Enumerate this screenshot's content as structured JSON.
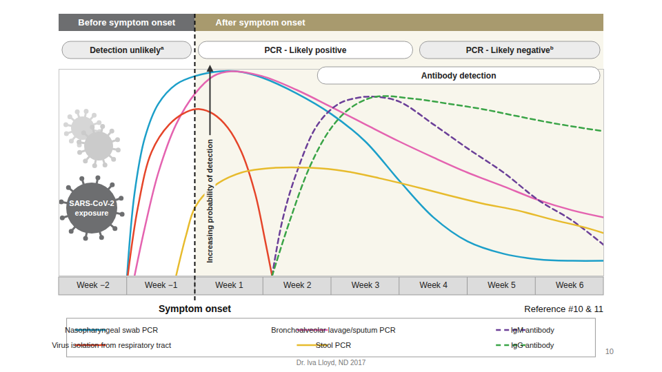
{
  "chart_data": {
    "type": "line",
    "header": {
      "before": "Before symptom onset",
      "after": "After symptom onset"
    },
    "onset": {
      "x": 0,
      "label": "Symptom onset"
    },
    "phases": [
      {
        "label": "Detection unlikely",
        "note": "a",
        "start": -2,
        "end": 0,
        "color": "#ececec"
      },
      {
        "label": "PCR - Likely positive",
        "start": 0,
        "end": 3.25,
        "color": "#ffffff"
      },
      {
        "label": "PCR - Likely negative",
        "note": "b",
        "start": 3.25,
        "end": 6,
        "color": "#ececec"
      },
      {
        "label": "Antibody detection",
        "start": 1.75,
        "end": 6,
        "color": "#ffffff"
      }
    ],
    "ylabel": "Increasing probability of detection",
    "exposure_label": "SARS-CoV-2 exposure",
    "reference": "Reference #10 & 11",
    "footer": "Dr. Iva Lloyd, ND 2017",
    "page": 10,
    "xlim": [
      -2,
      6
    ],
    "xticks": [
      {
        "value": -1.5,
        "label": "Week −2"
      },
      {
        "value": -0.5,
        "label": "Week −1"
      },
      {
        "value": 0.5,
        "label": "Week 1"
      },
      {
        "value": 1.5,
        "label": "Week 2"
      },
      {
        "value": 2.5,
        "label": "Week 3"
      },
      {
        "value": 3.5,
        "label": "Week 4"
      },
      {
        "value": 4.5,
        "label": "Week 5"
      },
      {
        "value": 5.5,
        "label": "Week 6"
      }
    ],
    "ylim": [
      0,
      100
    ],
    "tick_labels": "x",
    "legend": "bottom",
    "series": [
      {
        "name": "Nasopharyngeal swab PCR",
        "color": "#1c9fc9",
        "line_style": "solid",
        "x": [
          -1.0,
          -0.89,
          -0.74,
          -0.54,
          -0.28,
          0,
          0.37,
          0.68,
          0.98,
          1.49,
          2.0,
          2.5,
          3.0,
          3.5,
          4.0,
          4.53,
          5.04,
          5.54,
          6.0
        ],
        "values": [
          0,
          40,
          66.7,
          83.3,
          92.7,
          96.7,
          99,
          98.7,
          96,
          88.3,
          78.3,
          65,
          46,
          28.3,
          16.7,
          10.7,
          8,
          7.3,
          7.3
        ]
      },
      {
        "name": "Bronchoalveolar lavage/sputum PCR",
        "color": "#e463b0",
        "line_style": "solid",
        "x": [
          -0.89,
          -0.74,
          -0.54,
          -0.28,
          0,
          0.27,
          0.53,
          0.98,
          1.49,
          2.0,
          2.5,
          3.0,
          3.5,
          4.0,
          4.53,
          5.04,
          5.54,
          6.0
        ],
        "values": [
          0,
          23.3,
          50,
          73.3,
          88.3,
          96.7,
          99,
          96.7,
          90,
          81.7,
          73.3,
          65,
          57.3,
          50,
          43.3,
          36.7,
          31.7,
          28.3
        ]
      },
      {
        "name": "IgM antibody",
        "color": "#6b3f98",
        "line_style": "dashed",
        "x": [
          1.13,
          1.28,
          1.49,
          1.8,
          2.11,
          2.41,
          2.65,
          3.0,
          3.5,
          4.0,
          4.53,
          5.04,
          5.54,
          6.0
        ],
        "values": [
          0,
          26.7,
          50,
          73.3,
          83.3,
          86.3,
          86.7,
          84.3,
          73.3,
          61.7,
          50,
          36.7,
          26.7,
          15
        ]
      },
      {
        "name": "Virus isolation from respiratory tract",
        "color": "#e5452a",
        "line_style": "solid",
        "x": [
          -0.99,
          -0.84,
          -0.64,
          -0.38,
          -0.13,
          0.07,
          0.27,
          0.48,
          0.68,
          0.88,
          1.03,
          1.13
        ],
        "values": [
          0,
          33.3,
          60,
          73.3,
          79.3,
          80.7,
          78.3,
          71.7,
          60,
          40,
          16.7,
          0
        ]
      },
      {
        "name": "Stool PCR",
        "color": "#e7bb2d",
        "line_style": "solid",
        "x": [
          -0.28,
          -0.13,
          0,
          0.27,
          0.68,
          1.18,
          1.69,
          2.2,
          2.7,
          3.21,
          3.72,
          4.22,
          4.73,
          5.24,
          5.74,
          6.0
        ],
        "values": [
          0,
          20,
          33.3,
          43.3,
          50,
          52.3,
          52.3,
          50.7,
          47.3,
          43.3,
          39,
          35,
          31.7,
          27.3,
          23.3,
          20.7
        ]
      },
      {
        "name": "IgG antibody",
        "color": "#3aa447",
        "line_style": "dashed",
        "x": [
          1.13,
          1.39,
          1.69,
          2.0,
          2.3,
          2.65,
          3.21,
          3.72,
          4.22,
          4.73,
          5.24,
          5.74,
          6.0
        ],
        "values": [
          0,
          26.7,
          53.3,
          71.7,
          81.7,
          86.7,
          85.7,
          83.3,
          80.7,
          77.3,
          74,
          71.3,
          70
        ]
      }
    ]
  }
}
